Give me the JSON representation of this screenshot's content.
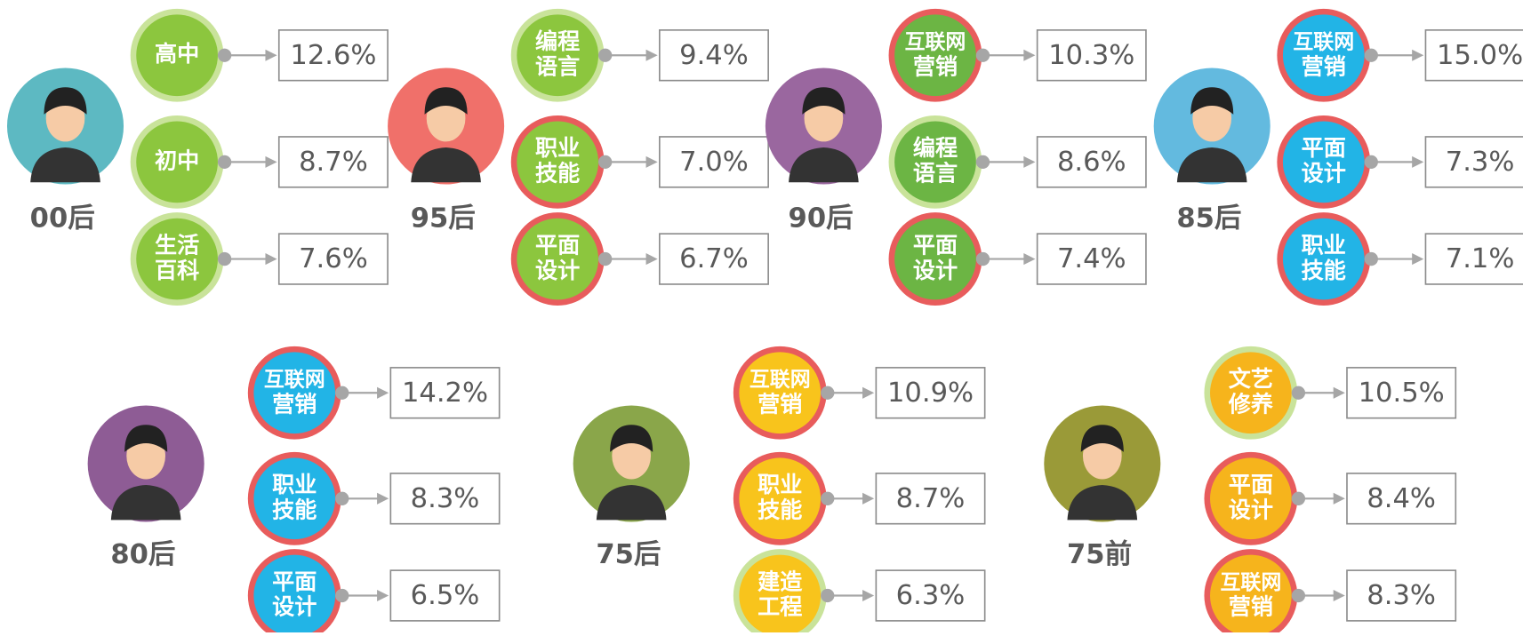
{
  "groups": [
    {
      "label": "00后",
      "avatar_color": "#5db9c2",
      "items": [
        {
          "lines": [
            "高中"
          ],
          "value": "12.6%",
          "fill": "#8cc63e",
          "ring": "#c9e39a"
        },
        {
          "lines": [
            "初中"
          ],
          "value": "8.7%",
          "fill": "#8cc63e",
          "ring": "#c9e39a"
        },
        {
          "lines": [
            "生活",
            "百科"
          ],
          "value": "7.6%",
          "fill": "#8cc63e",
          "ring": "#c9e39a"
        }
      ]
    },
    {
      "label": "95后",
      "avatar_color": "#f0706a",
      "items": [
        {
          "lines": [
            "编程",
            "语言"
          ],
          "value": "9.4%",
          "fill": "#8cc63e",
          "ring": "#c9e39a"
        },
        {
          "lines": [
            "职业",
            "技能"
          ],
          "value": "7.0%",
          "fill": "#8cc63e",
          "ring": "#e85c5c"
        },
        {
          "lines": [
            "平面",
            "设计"
          ],
          "value": "6.7%",
          "fill": "#8cc63e",
          "ring": "#e85c5c"
        }
      ]
    },
    {
      "label": "90后",
      "avatar_color": "#9a679f",
      "items": [
        {
          "lines": [
            "互联网",
            "营销"
          ],
          "value": "10.3%",
          "fill": "#6cb544",
          "ring": "#e85c5c"
        },
        {
          "lines": [
            "编程",
            "语言"
          ],
          "value": "8.6%",
          "fill": "#6cb544",
          "ring": "#c9e39a"
        },
        {
          "lines": [
            "平面",
            "设计"
          ],
          "value": "7.4%",
          "fill": "#6cb544",
          "ring": "#e85c5c"
        }
      ]
    },
    {
      "label": "85后",
      "avatar_color": "#63badf",
      "items": [
        {
          "lines": [
            "互联网",
            "营销"
          ],
          "value": "15.0%",
          "fill": "#22b4e6",
          "ring": "#e85c5c"
        },
        {
          "lines": [
            "平面",
            "设计"
          ],
          "value": "7.3%",
          "fill": "#22b4e6",
          "ring": "#e85c5c"
        },
        {
          "lines": [
            "职业",
            "技能"
          ],
          "value": "7.1%",
          "fill": "#22b4e6",
          "ring": "#e85c5c"
        }
      ]
    },
    {
      "label": "80后",
      "avatar_color": "#8e5c95",
      "items": [
        {
          "lines": [
            "互联网",
            "营销"
          ],
          "value": "14.2%",
          "fill": "#22b4e6",
          "ring": "#e85c5c"
        },
        {
          "lines": [
            "职业",
            "技能"
          ],
          "value": "8.3%",
          "fill": "#22b4e6",
          "ring": "#e85c5c"
        },
        {
          "lines": [
            "平面",
            "设计"
          ],
          "value": "6.5%",
          "fill": "#22b4e6",
          "ring": "#e85c5c"
        }
      ]
    },
    {
      "label": "75后",
      "avatar_color": "#8aa64a",
      "items": [
        {
          "lines": [
            "互联网",
            "营销"
          ],
          "value": "10.9%",
          "fill": "#f8c41c",
          "ring": "#e85c5c"
        },
        {
          "lines": [
            "职业",
            "技能"
          ],
          "value": "8.7%",
          "fill": "#f8c41c",
          "ring": "#e85c5c"
        },
        {
          "lines": [
            "建造",
            "工程"
          ],
          "value": "6.3%",
          "fill": "#f8c41c",
          "ring": "#c9e39a"
        }
      ]
    },
    {
      "label": "75前",
      "avatar_color": "#9a9a38",
      "items": [
        {
          "lines": [
            "文艺",
            "修养"
          ],
          "value": "10.5%",
          "fill": "#f6b41c",
          "ring": "#c9e39a"
        },
        {
          "lines": [
            "平面",
            "设计"
          ],
          "value": "8.4%",
          "fill": "#f6b41c",
          "ring": "#e85c5c"
        },
        {
          "lines": [
            "互联网",
            "营销"
          ],
          "value": "8.3%",
          "fill": "#f6b41c",
          "ring": "#e85c5c"
        }
      ]
    }
  ]
}
